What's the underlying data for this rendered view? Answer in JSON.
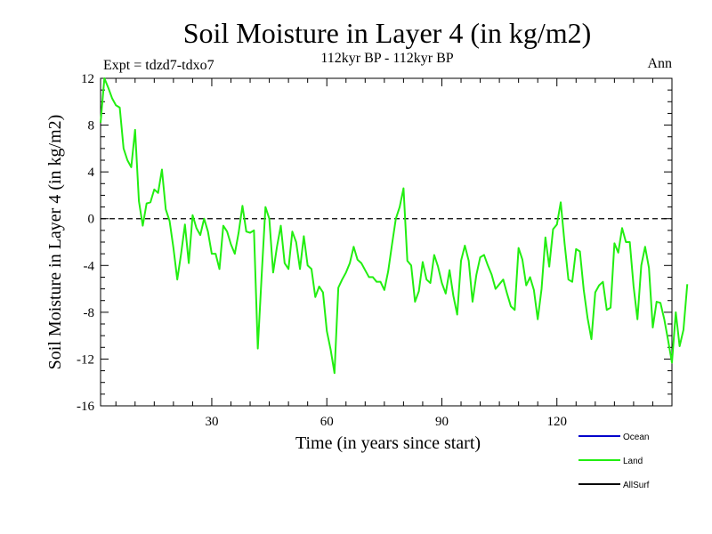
{
  "chart_data": {
    "type": "line",
    "title": "Soil Moisture in Layer 4 (in kg/m2)",
    "subtitle": "112kyr BP - 112kyr BP",
    "experiment_label": "Expt = tdzd7-tdxo7",
    "season_label": "Ann",
    "xlabel": "Time (in years since start)",
    "ylabel": "Soil Moisture in Layer 4 (in kg/m2)",
    "xlim": [
      1,
      150
    ],
    "ylim": [
      -16,
      12
    ],
    "x_ticks": [
      30,
      60,
      90,
      120
    ],
    "y_ticks": [
      12,
      8,
      4,
      0,
      -4,
      -8,
      -12,
      -16
    ],
    "zero_line": true,
    "series": [
      {
        "name": "Ocean",
        "color": "#0000cc",
        "values": []
      },
      {
        "name": "Land",
        "color": "#22ee11",
        "values": [
          8.2,
          12.0,
          11.2,
          10.3,
          9.7,
          9.5,
          6.0,
          5.0,
          4.4,
          7.6,
          1.5,
          -0.6,
          1.3,
          1.4,
          2.5,
          2.2,
          4.2,
          0.8,
          -0.2,
          -2.5,
          -5.2,
          -3.0,
          -0.5,
          -3.8,
          0.3,
          -0.8,
          -1.4,
          0.0,
          -1.1,
          -3.0,
          -3.0,
          -4.3,
          -0.6,
          -1.1,
          -2.2,
          -3.0,
          -1.2,
          1.1,
          -1.1,
          -1.2,
          -1.0,
          -11.1,
          -4.9,
          1.0,
          0.0,
          -4.6,
          -2.4,
          -0.6,
          -3.8,
          -4.3,
          -1.1,
          -2.0,
          -4.3,
          -1.5,
          -4.0,
          -4.3,
          -6.7,
          -5.8,
          -6.3,
          -9.6,
          -11.2,
          -13.2,
          -5.9,
          -5.2,
          -4.6,
          -3.8,
          -2.4,
          -3.5,
          -3.8,
          -4.4,
          -5.0,
          -5.0,
          -5.4,
          -5.4,
          -6.1,
          -4.5,
          -2.2,
          0.0,
          1.0,
          2.6,
          -3.6,
          -4.0,
          -7.1,
          -6.2,
          -3.7,
          -5.2,
          -5.5,
          -3.1,
          -4.1,
          -5.5,
          -6.4,
          -4.4,
          -6.6,
          -8.2,
          -3.6,
          -2.3,
          -3.6,
          -7.1,
          -4.8,
          -3.3,
          -3.1,
          -4.0,
          -4.8,
          -6.0,
          -5.6,
          -5.2,
          -6.4,
          -7.5,
          -7.8,
          -2.5,
          -3.5,
          -5.7,
          -5.0,
          -6.1,
          -8.6,
          -6.0,
          -1.6,
          -4.1,
          -0.9,
          -0.5,
          1.4,
          -2.1,
          -5.2,
          -5.4,
          -2.6,
          -2.8,
          -6.1,
          -8.5,
          -10.3,
          -6.3,
          -5.7,
          -5.4,
          -7.8,
          -7.6,
          -2.1,
          -2.9,
          -0.8,
          -2.0,
          -2.0,
          -5.8,
          -8.6,
          -4.0,
          -2.4,
          -4.2,
          -9.3,
          -7.1,
          -7.2,
          -8.6,
          -10.4,
          -12.3,
          -8.0,
          -10.9,
          -9.5,
          -5.6
        ]
      },
      {
        "name": "AllSurf",
        "color": "#000000",
        "values": []
      }
    ],
    "legend": [
      "Ocean",
      "Land",
      "AllSurf"
    ],
    "legend_position": "bottom-right"
  }
}
